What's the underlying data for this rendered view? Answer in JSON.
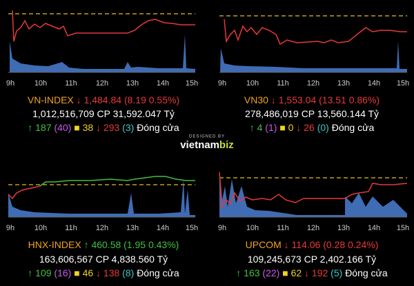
{
  "time_labels": [
    "9h",
    "10h",
    "11h",
    "12h",
    "13h",
    "14h",
    "15h"
  ],
  "panels": [
    {
      "name": "VN-INDEX",
      "price": "1,484.84",
      "change": "(8.19 0.55%)",
      "volume": "1,012,516,709",
      "volume_unit": "CP",
      "value": "31,592.047",
      "value_unit": "Tỷ",
      "advances": "187",
      "ceiling": "(40)",
      "unchanged": "38",
      "declines": "293",
      "floor": "(3)",
      "status": "Đóng cửa"
    },
    {
      "name": "VN30",
      "price": "1,553.04",
      "change": "(13.51 0.86%)",
      "volume": "278,486,019",
      "volume_unit": "CP",
      "value": "13,560.144",
      "value_unit": "Tỷ",
      "advances": "4",
      "ceiling": "(1)",
      "unchanged": "0",
      "declines": "26",
      "floor": "(0)",
      "status": "Đóng cửa"
    },
    {
      "name": "HNX-INDEX",
      "price": "460.58",
      "change": "(1.95 0.43%)",
      "volume": "163,606,567",
      "volume_unit": "CP",
      "value": "4,838.560",
      "value_unit": "Tỷ",
      "advances": "109",
      "ceiling": "(16)",
      "unchanged": "46",
      "declines": "138",
      "floor": "(8)",
      "status": "Đóng cửa"
    },
    {
      "name": "UPCOM",
      "price": "114.06",
      "change": "(0.28 0.24%)",
      "volume": "109,245,673",
      "volume_unit": "CP",
      "value": "2,402.166",
      "value_unit": "Tỷ",
      "advances": "163",
      "ceiling": "(22)",
      "unchanged": "62",
      "declines": "192",
      "floor": "(5)",
      "status": "Đóng cửa"
    }
  ],
  "logo": {
    "designed_by": "DESIGNED BY",
    "brand": "vietnam",
    "brand_accent": "biz"
  }
}
